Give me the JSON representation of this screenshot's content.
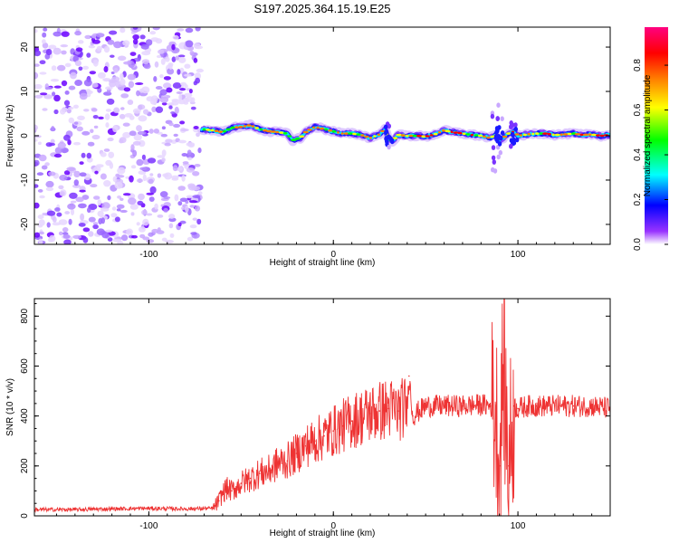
{
  "title": "S197.2025.364.15.19.E25",
  "chart_data": [
    {
      "type": "heatmap",
      "name": "spectrogram",
      "xlabel": "Height of straight line (km)",
      "ylabel": "Frequency (Hz)",
      "xlim": [
        -162,
        150
      ],
      "ylim": [
        -24.5,
        24.5
      ],
      "xticks": [
        -100,
        0,
        100
      ],
      "yticks": [
        -20,
        -10,
        0,
        10,
        20
      ],
      "noise_region_x": [
        -162,
        -72
      ],
      "signal_track": {
        "x": [
          -72,
          -65,
          -60,
          -55,
          -50,
          -45,
          -40,
          -35,
          -30,
          -25,
          -22,
          -18,
          -15,
          -10,
          -5,
          0,
          5,
          10,
          15,
          20,
          25,
          28,
          30,
          32,
          35,
          40,
          45,
          50,
          55,
          60,
          65,
          70,
          75,
          80,
          85,
          88,
          90,
          92,
          95,
          98,
          100,
          105,
          110,
          115,
          120,
          125,
          130,
          135,
          140,
          145,
          150
        ],
        "freq": [
          1.5,
          1.2,
          0.8,
          1.8,
          2.0,
          2.4,
          1.5,
          1.0,
          0.8,
          0.5,
          -1.0,
          -0.5,
          0.8,
          2.0,
          1.5,
          1.0,
          0.5,
          0.5,
          0.2,
          -0.5,
          0.3,
          1.5,
          -0.8,
          -1.2,
          0.2,
          0.0,
          0.0,
          -0.2,
          0.3,
          1.2,
          0.8,
          0.5,
          0.2,
          0.0,
          -0.5,
          0.3,
          -0.8,
          -0.5,
          0.5,
          1.0,
          0.0,
          0.3,
          0.5,
          0.5,
          0.2,
          0.3,
          0.5,
          0.2,
          0.3,
          0.0,
          0.2
        ]
      },
      "colorbar": {
        "label": "Normalized spectral amplitude",
        "ticks": [
          0.0,
          0.2,
          0.4,
          0.6,
          0.8
        ],
        "range": [
          0,
          0.97
        ],
        "colors": [
          "#ffffff",
          "#7a00ff",
          "#0000ff",
          "#00ffff",
          "#00ff00",
          "#ffff00",
          "#ff7f00",
          "#ff0000",
          "#ff0080"
        ]
      }
    },
    {
      "type": "line",
      "name": "snr",
      "xlabel": "Height of straight line (km)",
      "ylabel": "SNR (10 * v/v)",
      "xlim": [
        -162,
        150
      ],
      "ylim": [
        0,
        870
      ],
      "xticks": [
        -100,
        0,
        100
      ],
      "yticks": [
        0,
        200,
        400,
        600,
        800
      ],
      "color": "#ee3333",
      "series": [
        {
          "name": "SNR",
          "x": [
            -162,
            -140,
            -120,
            -100,
            -80,
            -65,
            -62,
            -60,
            -58,
            -55,
            -50,
            -45,
            -40,
            -35,
            -30,
            -25,
            -20,
            -15,
            -10,
            -5,
            0,
            5,
            10,
            15,
            20,
            25,
            30,
            35,
            40,
            41,
            43,
            50,
            60,
            70,
            80,
            85,
            88,
            90,
            92,
            95,
            98,
            100,
            105,
            110,
            120,
            130,
            140,
            150
          ],
          "y": [
            25,
            25,
            28,
            30,
            28,
            30,
            60,
            90,
            110,
            100,
            130,
            150,
            170,
            180,
            210,
            220,
            250,
            280,
            300,
            320,
            340,
            360,
            380,
            395,
            410,
            420,
            430,
            420,
            440,
            560,
            400,
            440,
            440,
            440,
            445,
            440,
            420,
            200,
            600,
            200,
            440,
            430,
            440,
            440,
            440,
            440,
            440,
            430
          ]
        }
      ]
    }
  ]
}
